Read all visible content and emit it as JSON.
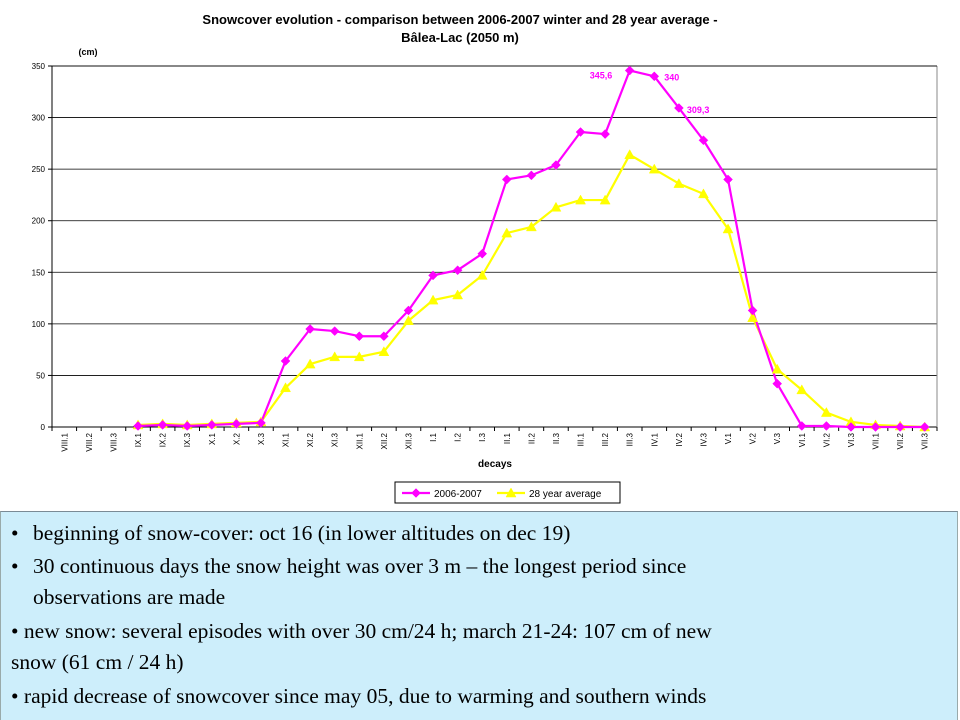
{
  "chart_data": {
    "type": "line",
    "title": "Snowcover evolution - comparison between 2006-2007 winter and 28 year average -",
    "subtitle": "Bâlea-Lac (2050 m)",
    "ylabel": "(cm)",
    "xlabel": "decays",
    "ylim": [
      0,
      350
    ],
    "yticks": [
      0,
      50,
      100,
      150,
      200,
      250,
      300,
      350
    ],
    "grid": true,
    "legend_position": "bottom",
    "categories": [
      "VIII.1",
      "VIII.2",
      "VIII.3",
      "IX.1",
      "IX.2",
      "IX.3",
      "X.1",
      "X.2",
      "X.3",
      "XI.1",
      "XI.2",
      "XI.3",
      "XII.1",
      "XII.2",
      "XII.3",
      "I.1",
      "I.2",
      "I.3",
      "II.1",
      "II.2",
      "II.3",
      "III.1",
      "III.2",
      "III.3",
      "IV.1",
      "IV.2",
      "IV.3",
      "V.1",
      "V.2",
      "V.3",
      "VI.1",
      "VI.2",
      "VI.3",
      "VII.1",
      "VII.2",
      "VII.3"
    ],
    "series": [
      {
        "name": "2006-2007",
        "color": "#ff00ff",
        "marker": "diamond",
        "values": [
          null,
          null,
          null,
          1,
          2,
          1,
          2,
          3,
          4,
          64,
          95,
          93,
          88,
          88,
          113,
          147,
          152,
          168,
          240,
          244,
          254,
          286,
          284,
          345.6,
          340,
          309.3,
          278,
          240,
          113,
          42,
          1,
          1,
          0,
          0,
          0,
          0
        ]
      },
      {
        "name": "28 year average",
        "color": "#ffff00",
        "marker": "triangle",
        "values": [
          null,
          null,
          null,
          2,
          3,
          2,
          3,
          4,
          5,
          38,
          61,
          68,
          68,
          73,
          103,
          123,
          128,
          147,
          188,
          194,
          213,
          220,
          220,
          264,
          250,
          236,
          226,
          192,
          106,
          56,
          36,
          14,
          5,
          2,
          1,
          0
        ]
      }
    ],
    "data_labels": [
      {
        "series": 0,
        "index": 23,
        "text": "345,6"
      },
      {
        "series": 0,
        "index": 24,
        "text": "340"
      },
      {
        "series": 0,
        "index": 25,
        "text": "309,3"
      }
    ]
  },
  "notes": {
    "bullet": "•",
    "line1": "beginning of snow-cover: oct 16 (in lower altitudes on dec 19)",
    "line2a": "30 continuous days the snow height was over 3 m – the longest period since",
    "line2b": "observations are made",
    "line3a": "new snow: several episodes with over 30 cm/24 h; march 21-24: 107 cm of new",
    "line3b": "snow (61 cm / 24 h)",
    "line4": "rapid decrease of snowcover since may 05, due to warming and southern winds"
  }
}
